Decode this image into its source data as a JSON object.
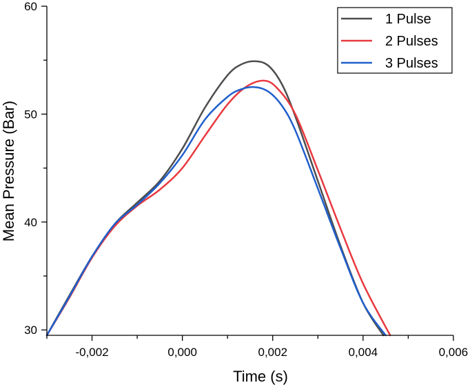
{
  "chart_data": {
    "type": "line",
    "title": "",
    "xlabel": "Time (s)",
    "ylabel": "Mean Pressure (Bar)",
    "xlim": [
      -0.003,
      0.006
    ],
    "ylim": [
      29.5,
      60
    ],
    "grid": false,
    "legend_position": "top-right",
    "x_ticks": [
      {
        "value": -0.002,
        "label": "-0,002"
      },
      {
        "value": 0.0,
        "label": "0,000"
      },
      {
        "value": 0.002,
        "label": "0,002"
      },
      {
        "value": 0.004,
        "label": "0,004"
      },
      {
        "value": 0.006,
        "label": "0,006"
      }
    ],
    "y_ticks": [
      {
        "value": 30,
        "label": "30"
      },
      {
        "value": 40,
        "label": "40"
      },
      {
        "value": 50,
        "label": "50"
      },
      {
        "value": 60,
        "label": "60"
      }
    ],
    "series": [
      {
        "name": "1 Pulse",
        "color": "#4d4d4d",
        "x": [
          -0.003,
          -0.0025,
          -0.002,
          -0.0015,
          -0.001,
          -0.0005,
          0.0,
          0.0005,
          0.001,
          0.0013,
          0.0016,
          0.0019,
          0.0022,
          0.0025,
          0.003,
          0.0035,
          0.004,
          0.00445
        ],
        "y": [
          29.5,
          33.2,
          36.8,
          39.8,
          41.8,
          43.8,
          46.8,
          50.6,
          53.6,
          54.6,
          54.9,
          54.5,
          52.8,
          49.8,
          43.8,
          37.8,
          32.5,
          29.5
        ]
      },
      {
        "name": "2 Pulses",
        "color": "#e8393f",
        "x": [
          -0.003,
          -0.0025,
          -0.002,
          -0.0015,
          -0.001,
          -0.0005,
          0.0,
          0.0005,
          0.001,
          0.0014,
          0.0018,
          0.0021,
          0.0025,
          0.003,
          0.0035,
          0.004,
          0.0046
        ],
        "y": [
          29.5,
          33.0,
          36.7,
          39.6,
          41.5,
          43.0,
          45.0,
          48.0,
          50.9,
          52.5,
          53.1,
          52.4,
          50.0,
          44.8,
          39.4,
          34.3,
          29.5
        ]
      },
      {
        "name": "3 Pulses",
        "color": "#1f5fcc",
        "x": [
          -0.003,
          -0.0025,
          -0.002,
          -0.0015,
          -0.001,
          -0.0005,
          0.0,
          0.0005,
          0.001,
          0.0013,
          0.0016,
          0.0019,
          0.0022,
          0.0025,
          0.003,
          0.0035,
          0.004,
          0.0045
        ],
        "y": [
          29.5,
          33.1,
          36.8,
          39.8,
          41.6,
          43.6,
          46.2,
          49.5,
          51.6,
          52.3,
          52.5,
          52.1,
          50.8,
          48.5,
          43.1,
          37.6,
          32.5,
          29.5
        ]
      }
    ]
  }
}
